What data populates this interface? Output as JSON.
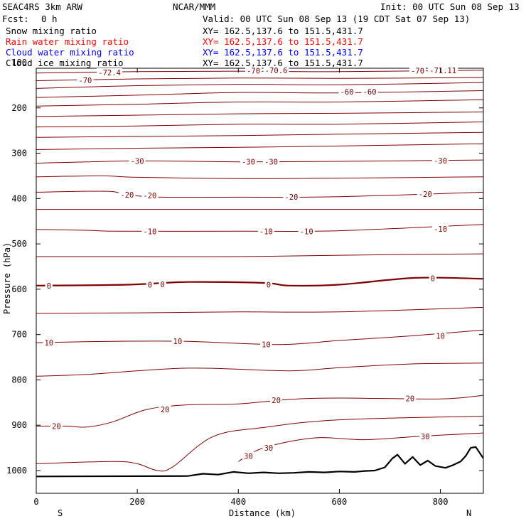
{
  "header": {
    "model": "SEAC4RS  3km ARW",
    "org": "NCAR/MMM",
    "init": "Init: 00 UTC Sun 08 Sep 13",
    "fcst_label": "Fcst:",
    "fcst_value": "0 h",
    "valid": "Valid: 00 UTC Sun 08 Sep 13 (19 CDT Sat 07 Sep 13)"
  },
  "fields": [
    {
      "name": "Snow mixing ratio",
      "xy": "XY= 162.5,137.6 to 151.5,431.7",
      "color": "#000000"
    },
    {
      "name": "Rain water mixing ratio",
      "xy": "XY= 162.5,137.6 to 151.5,431.7",
      "color": "#ff0000"
    },
    {
      "name": "Cloud water mixing ratio",
      "xy": "XY= 162.5,137.6 to 151.5,431.7",
      "color": "#0000ff"
    },
    {
      "name": "Cloud ice mixing ratio",
      "xy": "XY= 162.5,137.6 to 151.5,431.7",
      "color": "#000000"
    }
  ],
  "colors": {
    "contour": "#800000",
    "contour_label": "#800000",
    "terrain": "#000000"
  },
  "chart_data": {
    "type": "line",
    "xlabel": "Distance (km)",
    "ylabel": "Pressure (hPa)",
    "xlim": [
      0,
      885
    ],
    "ylim": [
      1050,
      100
    ],
    "x_ticks": [
      "0",
      "200",
      "400",
      "600",
      "800"
    ],
    "y_ticks": [
      "100",
      "200",
      "300",
      "400",
      "500",
      "600",
      "700",
      "800",
      "900",
      "1000"
    ],
    "y_tick_values": [
      100,
      200,
      300,
      400,
      500,
      600,
      700,
      800,
      900,
      1000
    ],
    "x_tick_values": [
      0,
      200,
      400,
      600,
      800
    ],
    "x_ends": [
      "S",
      "N"
    ],
    "grid": false,
    "contour_interval": 5,
    "contour_lines": [
      {
        "level": -72.4,
        "x": [
          0,
          200,
          400,
          600,
          885
        ],
        "p": [
          123,
          120,
          119,
          120,
          117
        ]
      },
      {
        "level": -70,
        "x": [
          0,
          200,
          400,
          600,
          885
        ],
        "p": [
          140,
          136,
          134,
          135,
          133
        ]
      },
      {
        "level": -65,
        "x": [
          0,
          200,
          400,
          600,
          885
        ],
        "p": [
          157,
          151,
          148,
          149,
          144
        ]
      },
      {
        "level": -60,
        "x": [
          0,
          200,
          400,
          600,
          885
        ],
        "p": [
          177,
          172,
          166,
          167,
          162
        ]
      },
      {
        "level": -55,
        "x": [
          0,
          200,
          400,
          600,
          885
        ],
        "p": [
          196,
          192,
          187,
          187,
          182
        ]
      },
      {
        "level": -50,
        "x": [
          0,
          200,
          400,
          600,
          885
        ],
        "p": [
          219,
          216,
          213,
          212,
          209
        ]
      },
      {
        "level": -45,
        "x": [
          0,
          200,
          400,
          600,
          885
        ],
        "p": [
          242,
          240,
          236,
          236,
          231
        ]
      },
      {
        "level": -40,
        "x": [
          0,
          200,
          400,
          600,
          885
        ],
        "p": [
          265,
          263,
          261,
          258,
          254
        ]
      },
      {
        "level": -35,
        "x": [
          0,
          200,
          400,
          600,
          885
        ],
        "p": [
          292,
          289,
          287,
          284,
          279
        ]
      },
      {
        "level": -30,
        "x": [
          0,
          200,
          400,
          600,
          885
        ],
        "p": [
          322,
          317,
          319,
          318,
          315
        ]
      },
      {
        "level": -25,
        "x": [
          0,
          130,
          200,
          400,
          600,
          885
        ],
        "p": [
          352,
          350,
          353,
          356,
          355,
          352
        ]
      },
      {
        "level": -20,
        "x": [
          0,
          140,
          180,
          250,
          400,
          600,
          885
        ],
        "p": [
          386,
          384,
          392,
          397,
          397,
          396,
          386
        ]
      },
      {
        "level": -15,
        "x": [
          0,
          200,
          400,
          600,
          885
        ],
        "p": [
          424,
          424,
          424,
          424,
          424
        ]
      },
      {
        "level": -10,
        "x": [
          0,
          100,
          160,
          400,
          600,
          885
        ],
        "p": [
          468,
          470,
          472,
          472,
          471,
          457
        ]
      },
      {
        "level": -5,
        "x": [
          0,
          200,
          400,
          600,
          885
        ],
        "p": [
          528,
          528,
          528,
          525,
          522
        ]
      },
      {
        "level": 0,
        "x": [
          0,
          180,
          300,
          450,
          500,
          600,
          750,
          885
        ],
        "p": [
          592,
          590,
          584,
          586,
          592,
          590,
          575,
          577
        ]
      },
      {
        "level": 5,
        "x": [
          0,
          200,
          400,
          600,
          885
        ],
        "p": [
          653,
          652,
          650,
          650,
          640
        ]
      },
      {
        "level": 10,
        "x": [
          0,
          150,
          300,
          480,
          600,
          740,
          885
        ],
        "p": [
          718,
          715,
          715,
          722,
          713,
          703,
          690
        ]
      },
      {
        "level": 15,
        "x": [
          0,
          100,
          300,
          500,
          600,
          740,
          885
        ],
        "p": [
          792,
          788,
          774,
          780,
          773,
          765,
          763
        ]
      },
      {
        "level": 20,
        "x": [
          0,
          60,
          100,
          150,
          220,
          300,
          400,
          500,
          600,
          800,
          885
        ],
        "p": [
          902,
          902,
          904,
          893,
          865,
          855,
          853,
          843,
          840,
          842,
          834
        ]
      },
      {
        "level": 25,
        "x": [
          0,
          150,
          200,
          240,
          270,
          350,
          450,
          600,
          885
        ],
        "p": [
          985,
          980,
          985,
          1000,
          992,
          925,
          905,
          888,
          880
        ]
      },
      {
        "level": 30,
        "x": [
          400,
          450,
          550,
          650,
          750,
          885
        ],
        "p": [
          980,
          950,
          928,
          932,
          925,
          917
        ]
      }
    ],
    "contour_labels": [
      {
        "text": "-72.4",
        "x": 145,
        "p": 122
      },
      {
        "text": "-70",
        "x": 97,
        "p": 139
      },
      {
        "text": "-70",
        "x": 430,
        "p": 118
      },
      {
        "text": "-70.6",
        "x": 475,
        "p": 117
      },
      {
        "text": "-70",
        "x": 755,
        "p": 118
      },
      {
        "text": "-71.11",
        "x": 805,
        "p": 117
      },
      {
        "text": "-60",
        "x": 615,
        "p": 164
      },
      {
        "text": "-60",
        "x": 660,
        "p": 164
      },
      {
        "text": "-30",
        "x": 200,
        "p": 317
      },
      {
        "text": "-30",
        "x": 420,
        "p": 319
      },
      {
        "text": "-30",
        "x": 465,
        "p": 319
      },
      {
        "text": "-30",
        "x": 800,
        "p": 316
      },
      {
        "text": "-20",
        "x": 180,
        "p": 392
      },
      {
        "text": "-20",
        "x": 225,
        "p": 393
      },
      {
        "text": "-20",
        "x": 505,
        "p": 396
      },
      {
        "text": "-20",
        "x": 770,
        "p": 390
      },
      {
        "text": "-10",
        "x": 225,
        "p": 472
      },
      {
        "text": "-10",
        "x": 455,
        "p": 472
      },
      {
        "text": "-10",
        "x": 535,
        "p": 472
      },
      {
        "text": "-10",
        "x": 800,
        "p": 467
      },
      {
        "text": "0",
        "x": 25,
        "p": 592
      },
      {
        "text": "0",
        "x": 225,
        "p": 590
      },
      {
        "text": "0",
        "x": 250,
        "p": 589
      },
      {
        "text": "0",
        "x": 460,
        "p": 590
      },
      {
        "text": "0",
        "x": 785,
        "p": 576
      },
      {
        "text": "10",
        "x": 25,
        "p": 718
      },
      {
        "text": "10",
        "x": 280,
        "p": 715
      },
      {
        "text": "10",
        "x": 455,
        "p": 722
      },
      {
        "text": "10",
        "x": 800,
        "p": 703
      },
      {
        "text": "20",
        "x": 40,
        "p": 902
      },
      {
        "text": "20",
        "x": 255,
        "p": 865
      },
      {
        "text": "20",
        "x": 475,
        "p": 845
      },
      {
        "text": "20",
        "x": 740,
        "p": 841
      },
      {
        "text": "30",
        "x": 420,
        "p": 968
      },
      {
        "text": "30",
        "x": 460,
        "p": 950
      },
      {
        "text": "30",
        "x": 770,
        "p": 925
      }
    ],
    "terrain": {
      "x": [
        0,
        300,
        330,
        360,
        390,
        420,
        450,
        480,
        510,
        540,
        570,
        600,
        630,
        650,
        670,
        690,
        705,
        715,
        730,
        745,
        760,
        775,
        790,
        810,
        825,
        840,
        850,
        860,
        870,
        885
      ],
      "p": [
        1013,
        1012,
        1007,
        1009,
        1003,
        1006,
        1004,
        1006,
        1005,
        1003,
        1004,
        1002,
        1003,
        1001,
        1000,
        993,
        973,
        965,
        985,
        970,
        988,
        978,
        990,
        994,
        988,
        980,
        968,
        950,
        948,
        973
      ]
    }
  }
}
